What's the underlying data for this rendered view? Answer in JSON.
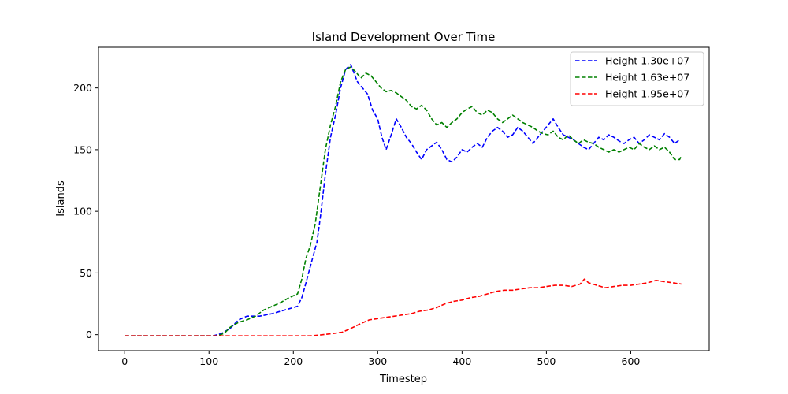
{
  "chart_data": {
    "type": "line",
    "title": "Island Development Over Time",
    "xlabel": "Timestep",
    "ylabel": "Islands",
    "xlim": [
      -31,
      693
    ],
    "ylim": [
      -13,
      233
    ],
    "xticks": [
      0,
      100,
      200,
      300,
      400,
      500,
      600
    ],
    "yticks": [
      0,
      50,
      100,
      150,
      200
    ],
    "grid": false,
    "legend_position": "top-right",
    "series": [
      {
        "name": "Height 1.30e+07",
        "color": "#0000ff",
        "points": [
          [
            0,
            -1
          ],
          [
            105,
            -1
          ],
          [
            115,
            1
          ],
          [
            125,
            5
          ],
          [
            135,
            12
          ],
          [
            145,
            15
          ],
          [
            160,
            15
          ],
          [
            175,
            17
          ],
          [
            185,
            19
          ],
          [
            195,
            21
          ],
          [
            205,
            23
          ],
          [
            210,
            30
          ],
          [
            215,
            42
          ],
          [
            222,
            60
          ],
          [
            228,
            75
          ],
          [
            232,
            95
          ],
          [
            238,
            130
          ],
          [
            244,
            160
          ],
          [
            250,
            178
          ],
          [
            256,
            200
          ],
          [
            262,
            215
          ],
          [
            268,
            219
          ],
          [
            272,
            212
          ],
          [
            276,
            205
          ],
          [
            282,
            200
          ],
          [
            288,
            195
          ],
          [
            294,
            182
          ],
          [
            300,
            175
          ],
          [
            305,
            160
          ],
          [
            310,
            150
          ],
          [
            316,
            162
          ],
          [
            322,
            175
          ],
          [
            328,
            168
          ],
          [
            334,
            160
          ],
          [
            340,
            155
          ],
          [
            346,
            148
          ],
          [
            352,
            142
          ],
          [
            358,
            150
          ],
          [
            364,
            153
          ],
          [
            370,
            156
          ],
          [
            376,
            150
          ],
          [
            382,
            142
          ],
          [
            388,
            140
          ],
          [
            394,
            144
          ],
          [
            400,
            150
          ],
          [
            406,
            148
          ],
          [
            412,
            152
          ],
          [
            418,
            155
          ],
          [
            424,
            152
          ],
          [
            430,
            160
          ],
          [
            436,
            165
          ],
          [
            442,
            168
          ],
          [
            448,
            165
          ],
          [
            454,
            160
          ],
          [
            460,
            162
          ],
          [
            466,
            168
          ],
          [
            472,
            165
          ],
          [
            478,
            160
          ],
          [
            484,
            155
          ],
          [
            490,
            160
          ],
          [
            496,
            165
          ],
          [
            502,
            170
          ],
          [
            508,
            175
          ],
          [
            514,
            168
          ],
          [
            520,
            162
          ],
          [
            526,
            160
          ],
          [
            532,
            158
          ],
          [
            538,
            155
          ],
          [
            544,
            152
          ],
          [
            550,
            150
          ],
          [
            556,
            155
          ],
          [
            562,
            160
          ],
          [
            568,
            158
          ],
          [
            574,
            162
          ],
          [
            580,
            160
          ],
          [
            586,
            157
          ],
          [
            592,
            155
          ],
          [
            598,
            158
          ],
          [
            604,
            160
          ],
          [
            610,
            155
          ],
          [
            616,
            158
          ],
          [
            622,
            162
          ],
          [
            628,
            160
          ],
          [
            634,
            158
          ],
          [
            640,
            163
          ],
          [
            646,
            160
          ],
          [
            652,
            155
          ],
          [
            658,
            158
          ]
        ]
      },
      {
        "name": "Height 1.63e+07",
        "color": "#008000",
        "points": [
          [
            0,
            -1
          ],
          [
            110,
            -1
          ],
          [
            118,
            1
          ],
          [
            125,
            6
          ],
          [
            135,
            10
          ],
          [
            145,
            12
          ],
          [
            155,
            15
          ],
          [
            165,
            20
          ],
          [
            175,
            23
          ],
          [
            185,
            26
          ],
          [
            195,
            30
          ],
          [
            205,
            33
          ],
          [
            210,
            45
          ],
          [
            215,
            62
          ],
          [
            220,
            72
          ],
          [
            226,
            90
          ],
          [
            232,
            120
          ],
          [
            238,
            150
          ],
          [
            244,
            170
          ],
          [
            250,
            185
          ],
          [
            256,
            205
          ],
          [
            262,
            215
          ],
          [
            268,
            217
          ],
          [
            274,
            213
          ],
          [
            280,
            208
          ],
          [
            286,
            212
          ],
          [
            292,
            210
          ],
          [
            298,
            205
          ],
          [
            304,
            200
          ],
          [
            310,
            197
          ],
          [
            316,
            198
          ],
          [
            322,
            196
          ],
          [
            328,
            193
          ],
          [
            334,
            190
          ],
          [
            340,
            185
          ],
          [
            346,
            183
          ],
          [
            352,
            186
          ],
          [
            358,
            182
          ],
          [
            364,
            175
          ],
          [
            370,
            170
          ],
          [
            376,
            172
          ],
          [
            382,
            168
          ],
          [
            388,
            172
          ],
          [
            394,
            175
          ],
          [
            400,
            180
          ],
          [
            406,
            183
          ],
          [
            412,
            185
          ],
          [
            418,
            180
          ],
          [
            424,
            178
          ],
          [
            430,
            182
          ],
          [
            436,
            180
          ],
          [
            442,
            175
          ],
          [
            448,
            172
          ],
          [
            454,
            175
          ],
          [
            460,
            178
          ],
          [
            466,
            175
          ],
          [
            472,
            172
          ],
          [
            478,
            170
          ],
          [
            484,
            168
          ],
          [
            490,
            165
          ],
          [
            496,
            163
          ],
          [
            502,
            162
          ],
          [
            508,
            165
          ],
          [
            514,
            160
          ],
          [
            520,
            158
          ],
          [
            526,
            162
          ],
          [
            532,
            158
          ],
          [
            538,
            155
          ],
          [
            544,
            158
          ],
          [
            550,
            156
          ],
          [
            556,
            155
          ],
          [
            562,
            152
          ],
          [
            568,
            150
          ],
          [
            574,
            148
          ],
          [
            580,
            150
          ],
          [
            586,
            148
          ],
          [
            592,
            150
          ],
          [
            598,
            152
          ],
          [
            604,
            150
          ],
          [
            610,
            155
          ],
          [
            616,
            152
          ],
          [
            622,
            150
          ],
          [
            628,
            153
          ],
          [
            634,
            150
          ],
          [
            640,
            152
          ],
          [
            646,
            148
          ],
          [
            652,
            142
          ],
          [
            658,
            142
          ],
          [
            660,
            145
          ]
        ]
      },
      {
        "name": "Height 1.95e+07",
        "color": "#ff0000",
        "points": [
          [
            0,
            -1
          ],
          [
            220,
            -1
          ],
          [
            235,
            0
          ],
          [
            248,
            1
          ],
          [
            258,
            2
          ],
          [
            268,
            5
          ],
          [
            280,
            9
          ],
          [
            290,
            12
          ],
          [
            300,
            13
          ],
          [
            310,
            14
          ],
          [
            320,
            15
          ],
          [
            330,
            16
          ],
          [
            340,
            17
          ],
          [
            350,
            19
          ],
          [
            360,
            20
          ],
          [
            370,
            22
          ],
          [
            380,
            25
          ],
          [
            390,
            27
          ],
          [
            400,
            28
          ],
          [
            410,
            30
          ],
          [
            420,
            31
          ],
          [
            430,
            33
          ],
          [
            440,
            35
          ],
          [
            450,
            36
          ],
          [
            460,
            36
          ],
          [
            470,
            37
          ],
          [
            480,
            38
          ],
          [
            490,
            38
          ],
          [
            500,
            39
          ],
          [
            510,
            40
          ],
          [
            520,
            40
          ],
          [
            530,
            39
          ],
          [
            540,
            41
          ],
          [
            545,
            45
          ],
          [
            550,
            42
          ],
          [
            560,
            40
          ],
          [
            570,
            38
          ],
          [
            580,
            39
          ],
          [
            590,
            40
          ],
          [
            600,
            40
          ],
          [
            610,
            41
          ],
          [
            620,
            42
          ],
          [
            630,
            44
          ],
          [
            640,
            43
          ],
          [
            650,
            42
          ],
          [
            660,
            41
          ]
        ]
      }
    ]
  }
}
